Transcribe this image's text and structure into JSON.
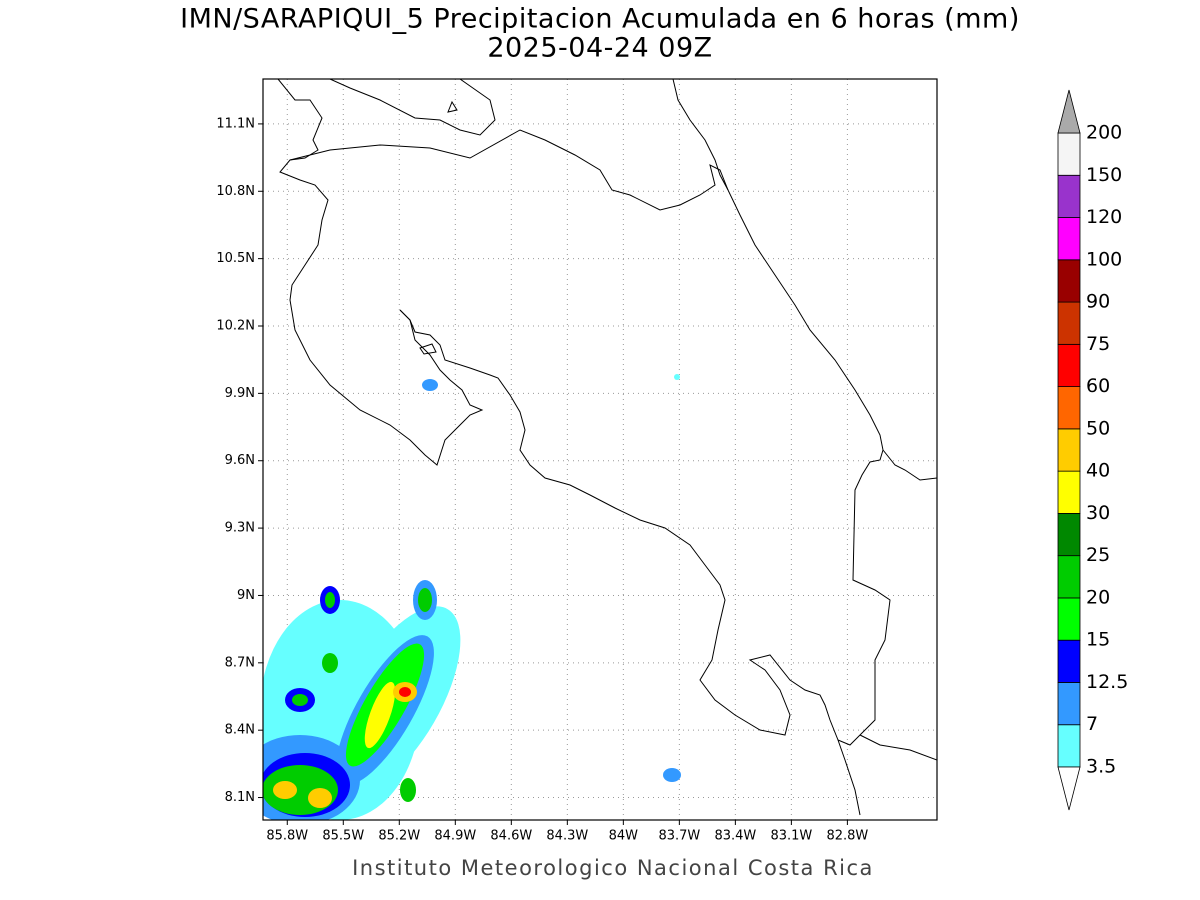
{
  "title": "IMN/SARAPIQUI_5 Precipitacion Acumulada en 6 horas (mm)",
  "subtitle": "2025-04-24 09Z",
  "footer": "Instituto Meteorologico Nacional Costa Rica",
  "map": {
    "xlim": [
      -85.93,
      -82.32
    ],
    "ylim": [
      8.0,
      11.3
    ],
    "grid": true,
    "xticks": [
      {
        "value": -85.8,
        "label": "85.8W"
      },
      {
        "value": -85.5,
        "label": "85.5W"
      },
      {
        "value": -85.2,
        "label": "85.2W"
      },
      {
        "value": -84.9,
        "label": "84.9W"
      },
      {
        "value": -84.6,
        "label": "84.6W"
      },
      {
        "value": -84.3,
        "label": "84.3W"
      },
      {
        "value": -84.0,
        "label": "84W"
      },
      {
        "value": -83.7,
        "label": "83.7W"
      },
      {
        "value": -83.4,
        "label": "83.4W"
      },
      {
        "value": -83.1,
        "label": "83.1W"
      },
      {
        "value": -82.8,
        "label": "82.8W"
      }
    ],
    "yticks": [
      {
        "value": 8.1,
        "label": "8.1N"
      },
      {
        "value": 8.4,
        "label": "8.4N"
      },
      {
        "value": 8.7,
        "label": "8.7N"
      },
      {
        "value": 9.0,
        "label": "9N"
      },
      {
        "value": 9.3,
        "label": "9.3N"
      },
      {
        "value": 9.6,
        "label": "9.6N"
      },
      {
        "value": 9.9,
        "label": "9.9N"
      },
      {
        "value": 10.2,
        "label": "10.2N"
      },
      {
        "value": 10.5,
        "label": "10.5N"
      },
      {
        "value": 10.8,
        "label": "10.8N"
      },
      {
        "value": 11.1,
        "label": "11.1N"
      }
    ]
  },
  "colorbar": {
    "levels": [
      3.5,
      7,
      12.5,
      15,
      20,
      25,
      30,
      40,
      50,
      60,
      75,
      90,
      100,
      120,
      150,
      200
    ],
    "colors": [
      "#66ffff",
      "#3399ff",
      "#0000ff",
      "#00ff00",
      "#00cc00",
      "#008800",
      "#ffff00",
      "#ffcc00",
      "#ff6600",
      "#ff0000",
      "#cc3300",
      "#990000",
      "#ff00ff",
      "#9933cc",
      "#f5f5f5"
    ],
    "under_color": "#ffffff",
    "over_color": "#aaaaaa"
  }
}
